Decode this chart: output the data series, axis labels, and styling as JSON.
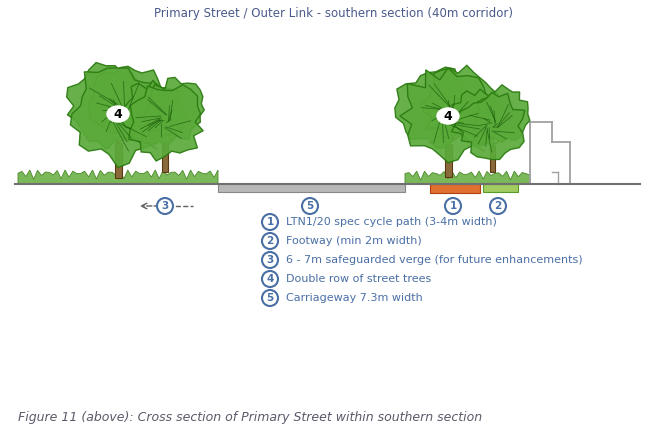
{
  "title": "Primary Street / Outer Link - southern section (40m corridor)",
  "title_color": "#4a5a8a",
  "title_fontsize": 8.5,
  "figure_caption": "Figure 11 (above): Cross section of Primary Street within southern section",
  "caption_color": "#5a5a6a",
  "caption_fontsize": 9,
  "legend_items": [
    {
      "num": "1",
      "text": "LTN1/20 spec cycle path (3-4m width)"
    },
    {
      "num": "2",
      "text": "Footway (min 2m width)"
    },
    {
      "num": "3",
      "text": "6 - 7m safeguarded verge (for future enhancements)"
    },
    {
      "num": "4",
      "text": "Double row of street trees"
    },
    {
      "num": "5",
      "text": "Carriageway 7.3m width"
    }
  ],
  "legend_color": "#4a6fa5",
  "bg_color": "#ffffff",
  "grass_color": "#7ab85a",
  "grass_edge": "#4a8a2a",
  "road_color": "#b8b8b8",
  "road_edge": "#888888",
  "cycle_color": "#e07030",
  "cycle_edge": "#b04010",
  "footway_color": "#a0cc60",
  "footway_edge": "#5a9a2a",
  "tree_foliage_color": "#5aaa3a",
  "tree_foliage_edge": "#2a7a10",
  "tree_trunk_color": "#8a6a3a",
  "tree_trunk_edge": "#5a3a10",
  "ground_color": "#707070",
  "bldg_color": "#a0a0a0",
  "label_circle_color": "#4a6fa5",
  "label_text_color": "#4a6fa5"
}
